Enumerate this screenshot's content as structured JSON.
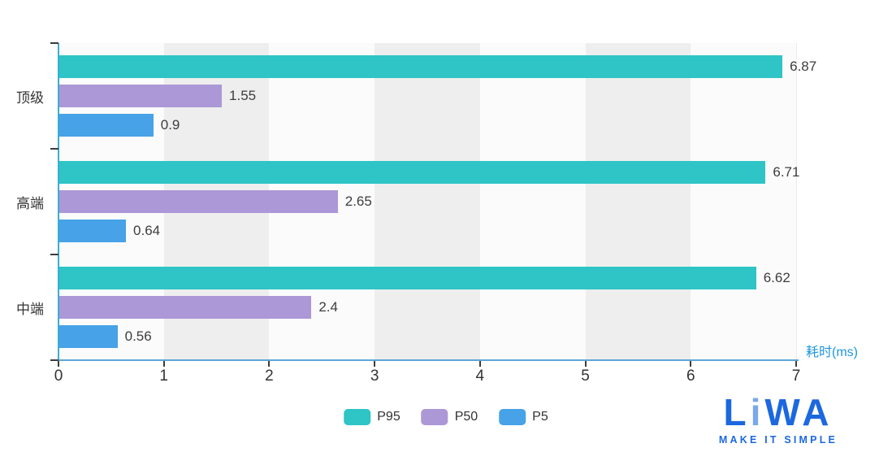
{
  "chart_data": {
    "type": "bar",
    "orientation": "horizontal",
    "categories": [
      "顶级",
      "高端",
      "中端"
    ],
    "series": [
      {
        "name": "P95",
        "color": "#2FC4C6",
        "values": [
          6.87,
          6.71,
          6.62
        ]
      },
      {
        "name": "P50",
        "color": "#AC97D7",
        "values": [
          1.55,
          2.65,
          2.4
        ]
      },
      {
        "name": "P5",
        "color": "#47A2E8",
        "values": [
          0.9,
          0.64,
          0.56
        ]
      }
    ],
    "value_labels_shown": [
      "6.87",
      "1.55",
      "0.9",
      "6.71",
      "2.65",
      "0.64",
      "6.62",
      "2.4",
      "0.56"
    ],
    "xlabel": "耗时(ms)",
    "xlim": [
      0,
      7
    ],
    "x_ticks": [
      "0",
      "1",
      "2",
      "3",
      "4",
      "5",
      "6",
      "7"
    ],
    "grid_bands": [
      [
        1,
        2
      ],
      [
        3,
        4
      ],
      [
        5,
        6
      ]
    ],
    "grid_band_color": "#EEEEEE",
    "legend": [
      "P95",
      "P50",
      "P5"
    ],
    "legend_position": "bottom-center"
  },
  "axis_style": {
    "x_axis_line_color": "#5AA8D6",
    "y_axis_line_color": "#3AAED2",
    "tick_color": "#3C3C3C",
    "tick_label_color": "#333333",
    "axis_title_color": "#1E96DC"
  },
  "logo": {
    "letters": [
      "L",
      "i",
      "W",
      "A"
    ],
    "tagline": "MAKE IT SIMPLE",
    "color": "#1C68DE",
    "accent_color": "#7BA8EC"
  }
}
